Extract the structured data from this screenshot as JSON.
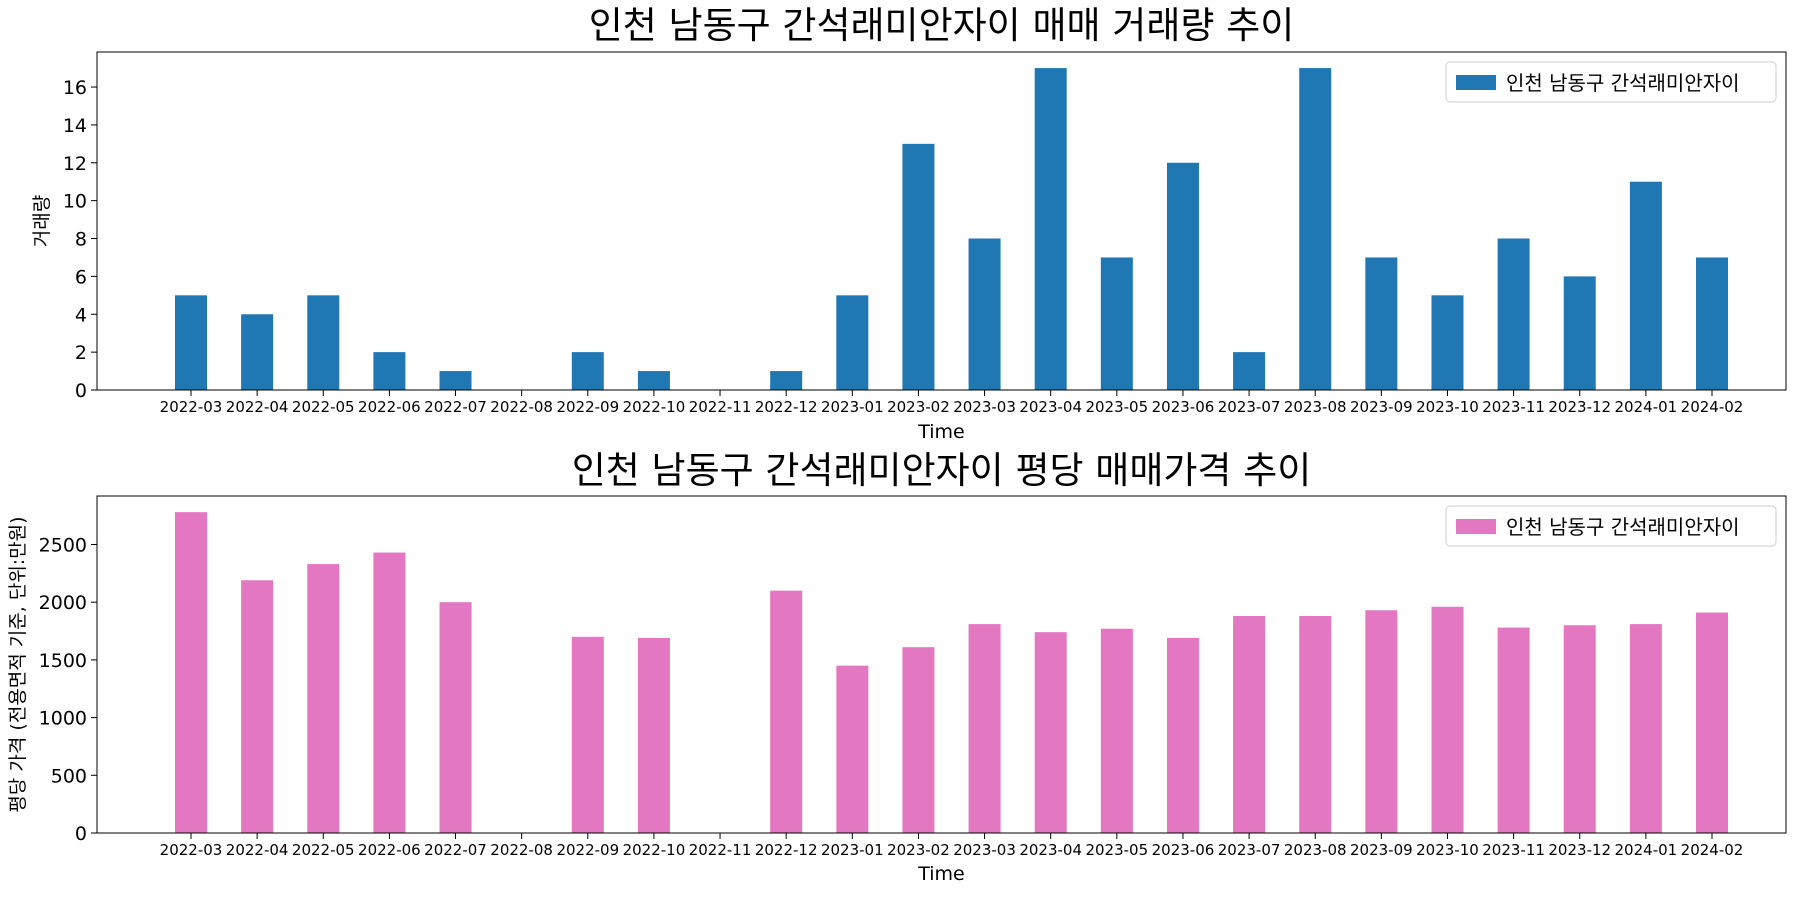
{
  "chart_data": [
    {
      "type": "bar",
      "title": "인천 남동구 간석래미안자이 매매 거래량 추이",
      "xlabel": "Time",
      "ylabel": "거래량",
      "color": "#1f77b4",
      "legend_placement": "top-right",
      "grid": false,
      "ylim": [
        0,
        17.85
      ],
      "yticks": [
        0,
        2,
        4,
        6,
        8,
        10,
        12,
        14,
        16
      ],
      "categories": [
        "2022-03",
        "2022-04",
        "2022-05",
        "2022-06",
        "2022-07",
        "2022-08",
        "2022-09",
        "2022-10",
        "2022-11",
        "2022-12",
        "2023-01",
        "2023-02",
        "2023-03",
        "2023-04",
        "2023-05",
        "2023-06",
        "2023-07",
        "2023-08",
        "2023-09",
        "2023-10",
        "2023-11",
        "2023-12",
        "2024-01",
        "2024-02"
      ],
      "series": [
        {
          "name": "인천 남동구 간석래미안자이",
          "values": [
            5,
            4,
            5,
            2,
            1,
            0,
            2,
            1,
            0,
            1,
            5,
            13,
            8,
            17,
            7,
            12,
            2,
            17,
            7,
            5,
            8,
            6,
            11,
            7
          ]
        }
      ]
    },
    {
      "type": "bar",
      "title": "인천 남동구 간석래미안자이 평당 매매가격 추이",
      "xlabel": "Time",
      "ylabel": "평당 가격 (전용면적 기준, 단위:만원)",
      "color": "#e377c2",
      "legend_placement": "top-right",
      "grid": false,
      "ylim": [
        0,
        2920
      ],
      "yticks": [
        0,
        500,
        1000,
        1500,
        2000,
        2500
      ],
      "categories": [
        "2022-03",
        "2022-04",
        "2022-05",
        "2022-06",
        "2022-07",
        "2022-08",
        "2022-09",
        "2022-10",
        "2022-11",
        "2022-12",
        "2023-01",
        "2023-02",
        "2023-03",
        "2023-04",
        "2023-05",
        "2023-06",
        "2023-07",
        "2023-08",
        "2023-09",
        "2023-10",
        "2023-11",
        "2023-12",
        "2024-01",
        "2024-02"
      ],
      "series": [
        {
          "name": "인천 남동구 간석래미안자이",
          "values": [
            2780,
            2190,
            2330,
            2430,
            2000,
            0,
            1700,
            1690,
            0,
            2100,
            1450,
            1610,
            1810,
            1740,
            1770,
            1690,
            1880,
            1880,
            1930,
            1960,
            1780,
            1800,
            1810,
            1910
          ]
        }
      ]
    }
  ]
}
